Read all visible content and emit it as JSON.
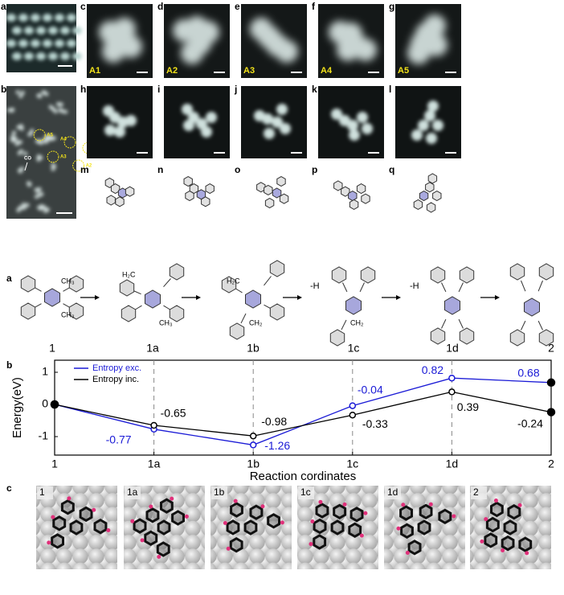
{
  "figure_top": {
    "panel_labels": [
      "a",
      "b",
      "c",
      "d",
      "e",
      "f",
      "g",
      "h",
      "i",
      "j",
      "k",
      "l",
      "m",
      "n",
      "o",
      "p",
      "q"
    ],
    "adsorbate_labels": [
      "A1",
      "A2",
      "A3",
      "A4",
      "A5"
    ],
    "overview_labels": [
      "A5",
      "A4",
      "A1",
      "A3",
      "A2",
      "CO"
    ]
  },
  "scheme": {
    "panel_label": "a",
    "molecule_labels": [
      "1",
      "1a",
      "1b",
      "1c",
      "1d",
      "2"
    ],
    "step_labels": [
      "-H",
      "-H"
    ],
    "group_labels": [
      "CH₃",
      "CH₃",
      "H₂C",
      "CH₃",
      "H₂C",
      "CH₂",
      "CH₂"
    ]
  },
  "chart_data": {
    "type": "line",
    "panel_label": "b",
    "y_label": "Energy(eV)",
    "x_label": "Reaction cordinates",
    "categories": [
      "1",
      "1a",
      "1b",
      "1c",
      "1d",
      "2"
    ],
    "ylim": [
      -1.575,
      1.375
    ],
    "yticks": [
      1,
      0,
      -1
    ],
    "legend": "upper left",
    "series": [
      {
        "name": "Entropy exc.",
        "color": "#1a1ad6",
        "values": [
          0,
          -0.77,
          -1.26,
          -0.04,
          0.82,
          0.68
        ]
      },
      {
        "name": "Entropy inc.",
        "color": "#000000",
        "values": [
          0,
          -0.65,
          -0.98,
          -0.33,
          0.39,
          -0.24
        ]
      }
    ]
  },
  "structures": {
    "panel_label": "c",
    "labels": [
      "1",
      "1a",
      "1b",
      "1c",
      "1d",
      "2"
    ]
  }
}
